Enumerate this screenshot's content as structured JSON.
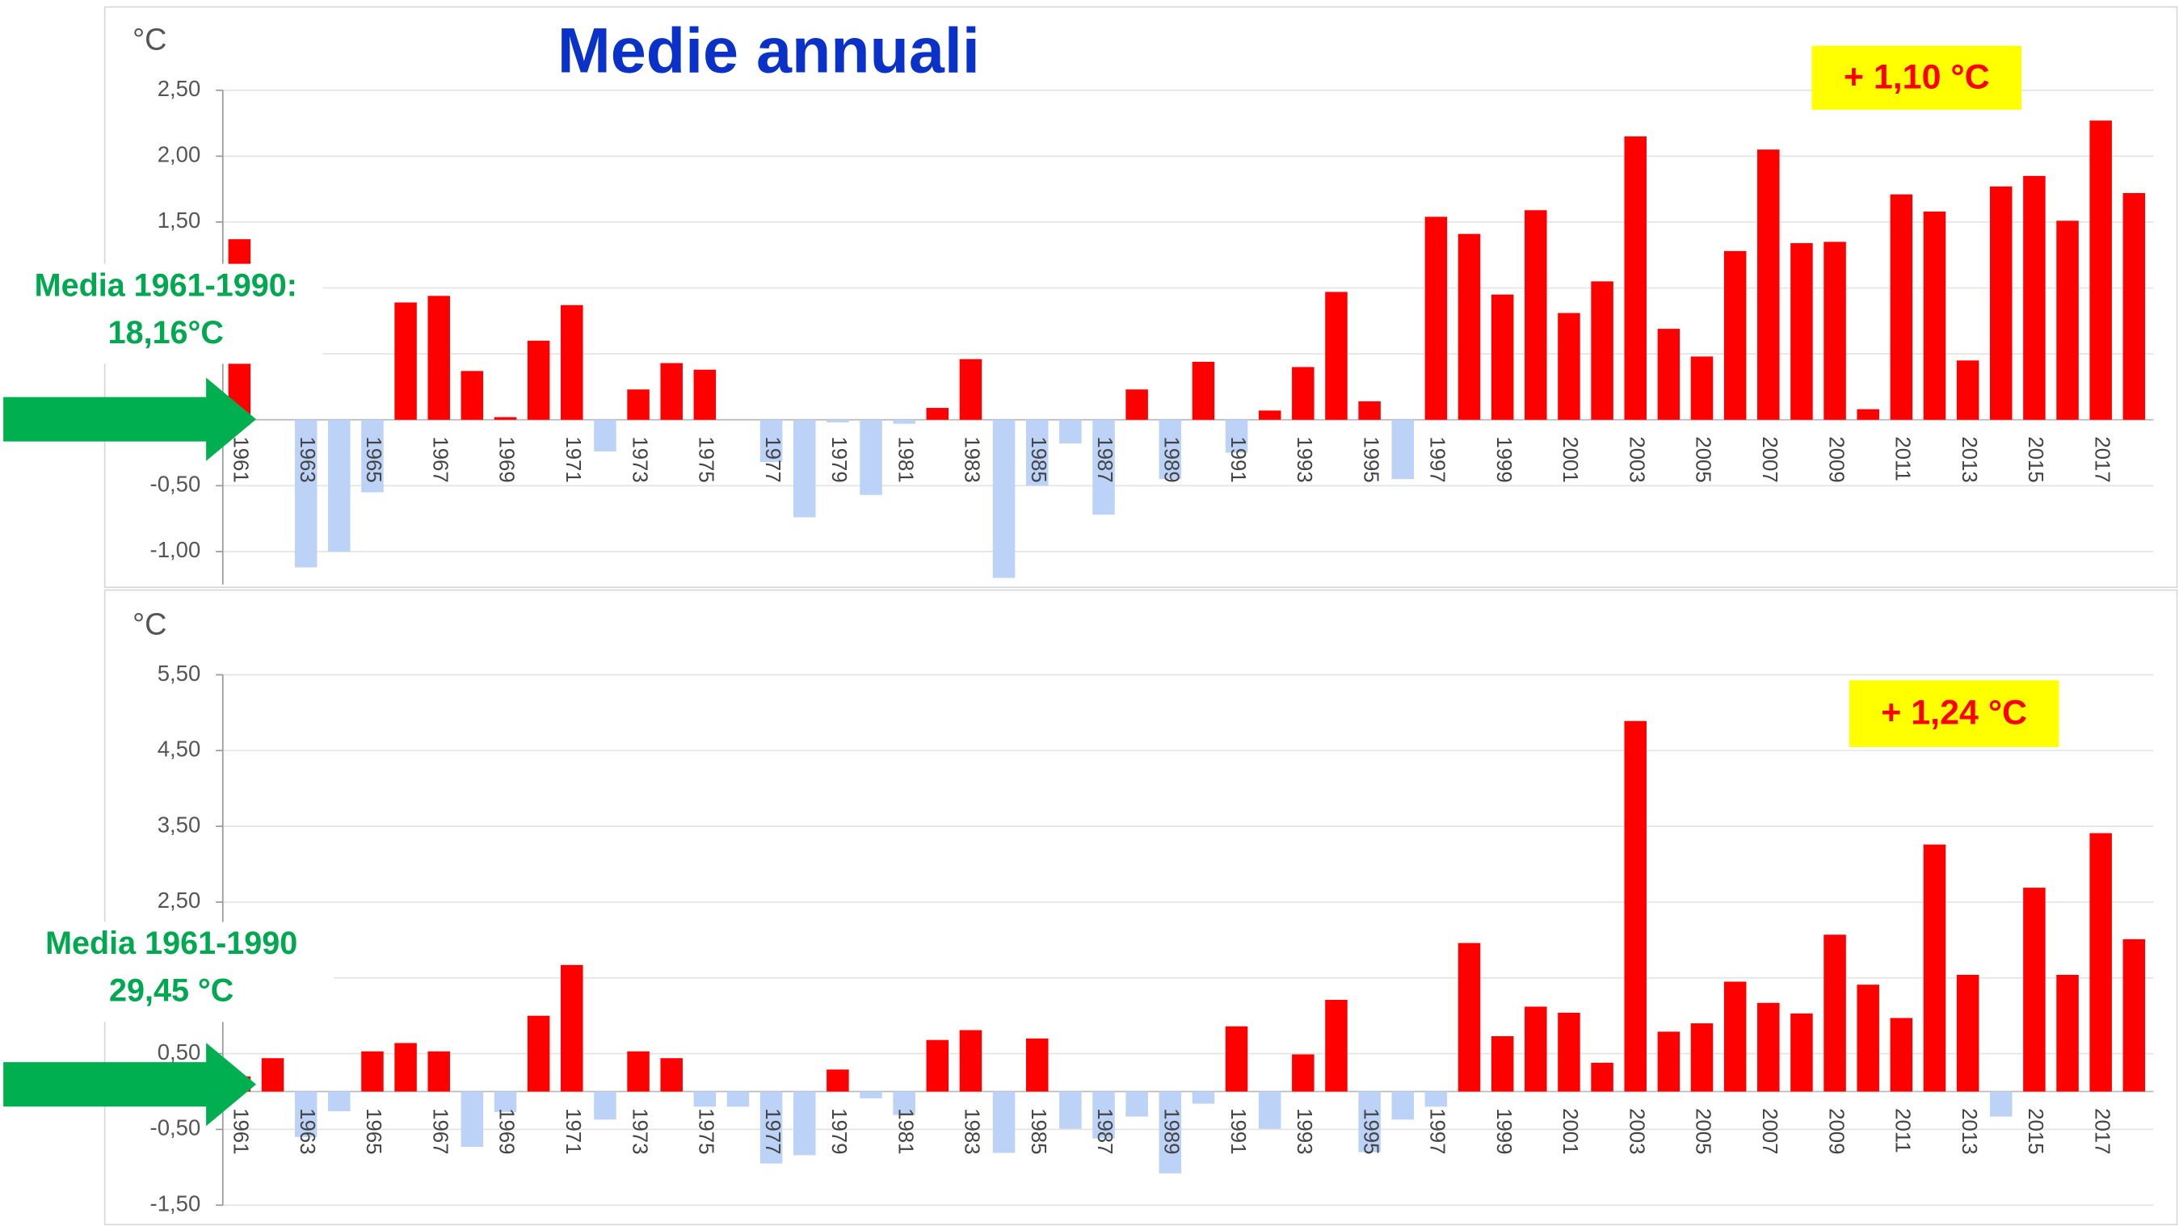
{
  "chart_data": [
    {
      "type": "bar",
      "title": "Medie annuali",
      "y_label": "°C",
      "annotation": "+ 1,10 °C",
      "note": [
        "Media 1961-1990:",
        "18,16°C"
      ],
      "color": "#ff0000",
      "negative_color": "#bcd2f6",
      "grid": true,
      "categories": [
        "1961",
        null,
        "1963",
        null,
        "1965",
        null,
        "1967",
        null,
        "1969",
        null,
        "1971",
        null,
        "1973",
        null,
        "1975",
        null,
        "1977",
        null,
        "1979",
        null,
        "1981",
        null,
        "1983",
        null,
        "1985",
        null,
        "1987",
        null,
        "1989",
        null,
        "1991",
        null,
        "1993",
        null,
        "1995",
        null,
        "1997",
        null,
        "1999",
        null,
        "2001",
        null,
        "2003",
        null,
        "2005",
        null,
        "2007",
        null,
        "2009",
        null,
        "2011",
        null,
        "2013",
        null,
        "2015",
        null,
        "2017",
        null
      ],
      "values": [
        1.37,
        0,
        -1.12,
        -1.0,
        -0.55,
        0.89,
        0.94,
        0.37,
        0.02,
        0.6,
        0.87,
        -0.24,
        0.23,
        0.43,
        0.38,
        0,
        -0.32,
        -0.74,
        -0.02,
        -0.57,
        -0.03,
        0.09,
        0.46,
        -1.2,
        -0.5,
        -0.18,
        -0.72,
        0.23,
        -0.45,
        0.44,
        -0.25,
        0.07,
        0.4,
        0.97,
        0.14,
        -0.45,
        1.54,
        1.41,
        0.95,
        1.59,
        0.81,
        1.05,
        2.15,
        0.69,
        0.48,
        1.28,
        2.05,
        1.34,
        1.35,
        0.08,
        1.71,
        1.58,
        0.45,
        1.77,
        1.85,
        1.51,
        2.27,
        1.72
      ],
      "ylim": [
        -1.25,
        2.5
      ],
      "yticks": [
        {
          "value": -1,
          "label": "-1,00"
        },
        {
          "value": -0.5,
          "label": "-0,50"
        },
        {
          "value": 0,
          "label": null
        },
        {
          "value": 0.5,
          "label": null
        },
        {
          "value": 1,
          "label": null
        },
        {
          "value": 1.5,
          "label": "1,50"
        },
        {
          "value": 2,
          "label": "2,00"
        },
        {
          "value": 2.5,
          "label": "2,50"
        }
      ]
    },
    {
      "type": "bar",
      "y_label": "°C",
      "annotation": "+ 1,24 °C",
      "note": [
        "Media 1961-1990",
        "29,45 °C"
      ],
      "color": "#ff0000",
      "negative_color": "#bcd2f6",
      "grid": true,
      "categories": [
        "1961",
        null,
        "1963",
        null,
        "1965",
        null,
        "1967",
        null,
        "1969",
        null,
        "1971",
        null,
        "1973",
        null,
        "1975",
        null,
        "1977",
        null,
        "1979",
        null,
        "1981",
        null,
        "1983",
        null,
        "1985",
        null,
        "1987",
        null,
        "1989",
        null,
        "1991",
        null,
        "1993",
        null,
        "1995",
        null,
        "1997",
        null,
        "1999",
        null,
        "2001",
        null,
        "2003",
        null,
        "2005",
        null,
        "2007",
        null,
        "2009",
        null,
        "2011",
        null,
        "2013",
        null,
        "2015",
        null,
        "2017",
        null
      ],
      "values": [
        0.2,
        0.44,
        -0.6,
        -0.26,
        0.53,
        0.64,
        0.53,
        -0.73,
        -0.27,
        1.0,
        1.67,
        -0.37,
        0.53,
        0.44,
        -0.2,
        -0.2,
        -0.95,
        -0.84,
        0.29,
        -0.09,
        -0.31,
        0.68,
        0.81,
        -0.81,
        0.7,
        -0.49,
        -0.62,
        -0.33,
        -1.08,
        -0.16,
        0.86,
        -0.49,
        0.49,
        1.21,
        -0.8,
        -0.37,
        -0.2,
        1.96,
        0.73,
        1.12,
        1.04,
        0.38,
        4.89,
        0.79,
        0.9,
        1.45,
        1.17,
        1.03,
        2.07,
        1.41,
        0.97,
        3.26,
        1.54,
        -0.33,
        2.69,
        1.54,
        3.41,
        2.01
      ],
      "ylim": [
        -1.5,
        5.5
      ],
      "yticks": [
        {
          "value": -1.5,
          "label": "-1,50"
        },
        {
          "value": -0.5,
          "label": "-0,50"
        },
        {
          "value": 0.5,
          "label": "0,50"
        },
        {
          "value": 1.5,
          "label": null
        },
        {
          "value": 2.5,
          "label": "2,50"
        },
        {
          "value": 3.5,
          "label": "3,50"
        },
        {
          "value": 4.5,
          "label": "4,50"
        },
        {
          "value": 5.5,
          "label": "5,50"
        }
      ]
    }
  ]
}
